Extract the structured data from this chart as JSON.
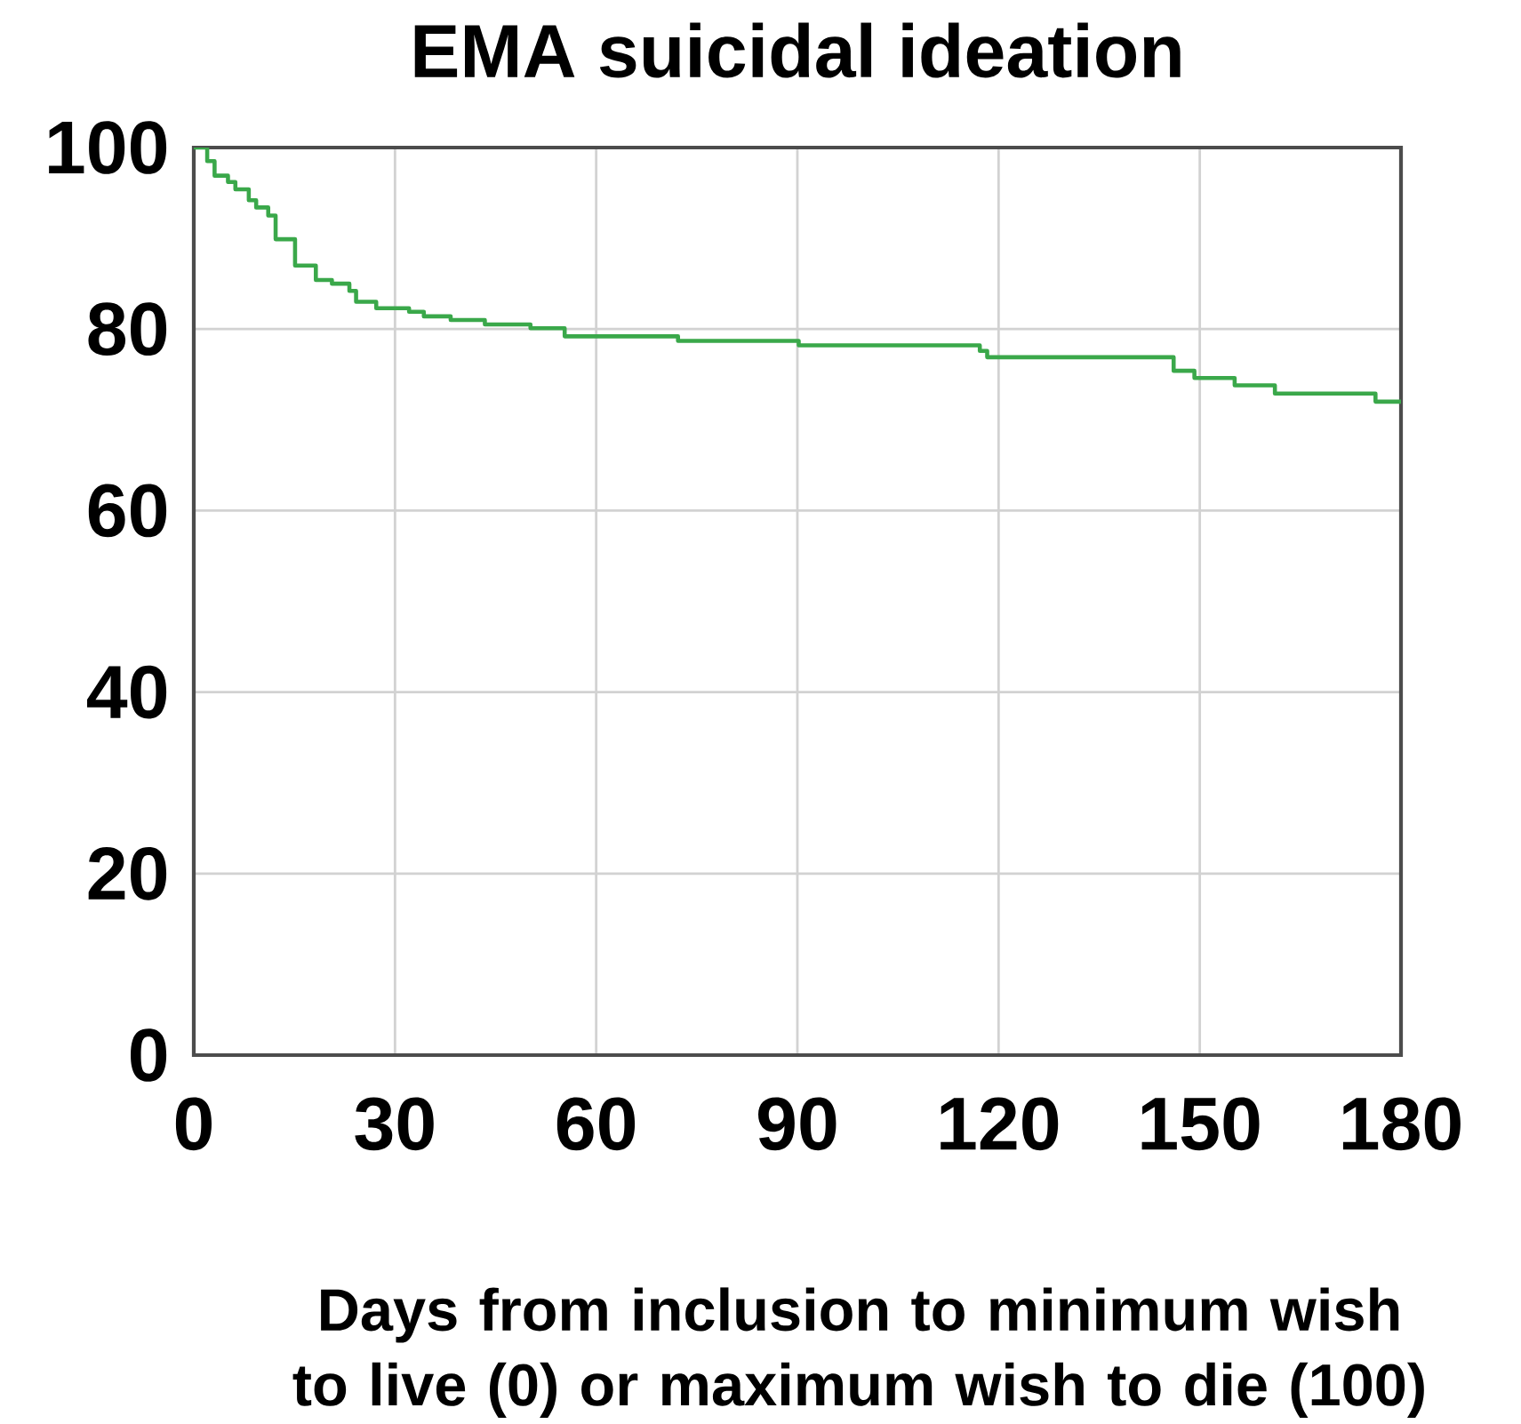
{
  "chart_data": {
    "type": "step",
    "title": "EMA suicidal ideation",
    "xlabel": "Days from inclusion to minimum wish to live (0) or maximum wish to die (100)",
    "x": [
      0,
      2.0,
      3.1,
      5.1,
      6.2,
      8.2,
      9.3,
      11.1,
      12.2,
      15.1,
      18.2,
      20.6,
      23.2,
      24.2,
      27.2,
      32.1,
      34.3,
      38.3,
      43.4,
      50.2,
      55.3,
      72.2,
      90.2,
      117.2,
      118.3,
      146.1,
      149.2,
      155.2,
      161.2,
      176.2,
      180
    ],
    "values": [
      100,
      98.5,
      96.9,
      96.2,
      95.4,
      94.2,
      93.4,
      92.5,
      89.9,
      87.0,
      85.4,
      85.0,
      84.2,
      83.0,
      82.3,
      81.9,
      81.4,
      81.0,
      80.5,
      80.1,
      79.2,
      78.7,
      78.2,
      77.6,
      76.9,
      75.4,
      74.6,
      73.8,
      72.9,
      72.0,
      72.0
    ],
    "color": "#3aa84a",
    "xlim": [
      0,
      180
    ],
    "ylim": [
      0,
      100
    ],
    "xticks": [
      0,
      30,
      60,
      90,
      120,
      150,
      180
    ],
    "yticks": [
      0,
      20,
      40,
      60,
      80,
      100
    ],
    "grid": true
  }
}
